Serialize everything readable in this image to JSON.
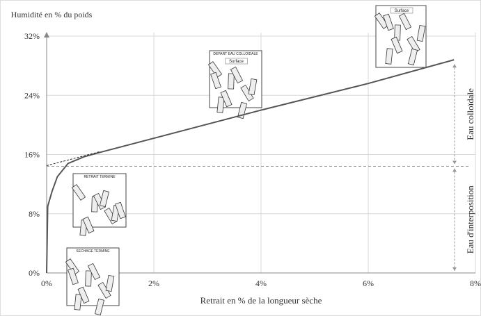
{
  "chart_data": {
    "type": "line",
    "y_label": "Humidité en % du poids",
    "x_label": "Retrait en % de la longueur sèche",
    "xlim": [
      0,
      8
    ],
    "ylim": [
      0,
      32
    ],
    "xticks": [
      {
        "value": 0,
        "label": "0%"
      },
      {
        "value": 2,
        "label": "2%"
      },
      {
        "value": 4,
        "label": "4%"
      },
      {
        "value": 6,
        "label": "6%"
      },
      {
        "value": 8,
        "label": "8%"
      }
    ],
    "yticks": [
      {
        "value": 0,
        "label": "0%"
      },
      {
        "value": 8,
        "label": "8%"
      },
      {
        "value": 16,
        "label": "16%"
      },
      {
        "value": 24,
        "label": "24%"
      },
      {
        "value": 32,
        "label": "32%"
      }
    ],
    "grid": true,
    "series": [
      {
        "color": "#555555",
        "x": [
          0,
          0.02,
          0.1,
          0.2,
          0.4,
          0.7,
          1,
          2,
          4,
          6,
          7.6
        ],
        "values": [
          0,
          9,
          11,
          13,
          14.8,
          15.7,
          16.3,
          18.2,
          22,
          25.6,
          28.8
        ]
      },
      {
        "color": "#222222",
        "dashed": true,
        "x": [
          0,
          1
        ],
        "values": [
          14.5,
          16.4
        ]
      }
    ],
    "hline": {
      "value": 14.4,
      "color": "#999999",
      "dashed": true
    },
    "zones": [
      {
        "label": "Eau colloïdale",
        "from": 14.4,
        "to": 28.5
      },
      {
        "label": "Eau d'interposition",
        "from": 0,
        "to": 14.4
      }
    ],
    "sketches": [
      {
        "label": "SECHAGE TERMINE"
      },
      {
        "label": "RETRAIT TERMINE"
      },
      {
        "label": "DEPART EAU COLLOIDALE",
        "sublabel": "Surface"
      },
      {
        "sublabel": "Surface"
      }
    ]
  }
}
